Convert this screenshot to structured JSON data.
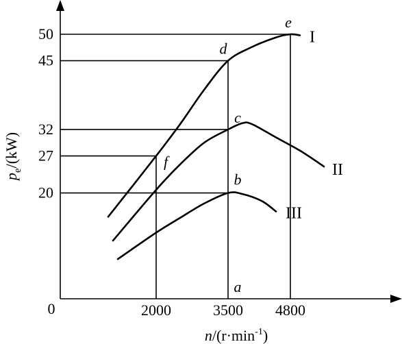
{
  "chart_data": {
    "type": "line",
    "xlabel_parts": {
      "var": "n",
      "unit": "/(r·min",
      "exp": "-1",
      "close": ")"
    },
    "ylabel_parts": {
      "var": "p",
      "sub": "e",
      "unit": "/(kW)"
    },
    "x_origin_label": "0",
    "xlim": [
      0,
      5600
    ],
    "ylim": [
      0,
      55
    ],
    "x_ticks": [
      2000,
      3500,
      4800
    ],
    "x_tick_labels": [
      "2000",
      "3500",
      "4800"
    ],
    "y_ticks": [
      20,
      27,
      32,
      45,
      50
    ],
    "y_tick_labels": [
      "20",
      "27",
      "32",
      "45",
      "50"
    ],
    "grid": false,
    "series": [
      {
        "name": "I",
        "x": [
          1000,
          2000,
          2500,
          3000,
          3500,
          4000,
          4500,
          4800,
          5000
        ],
        "y": [
          15.5,
          27,
          33,
          39.5,
          45,
          47.6,
          49.4,
          50,
          49.8
        ]
      },
      {
        "name": "II",
        "x": [
          1100,
          2000,
          2500,
          3000,
          3500,
          3800,
          4000,
          4500,
          5000,
          5500
        ],
        "y": [
          11,
          20.6,
          25.4,
          29.5,
          32,
          33.2,
          33.0,
          30.5,
          28,
          25
        ]
      },
      {
        "name": "III",
        "x": [
          1200,
          2000,
          2500,
          3000,
          3500,
          3800,
          4200,
          4500
        ],
        "y": [
          7.5,
          12.5,
          15.3,
          18,
          20,
          19.8,
          18.5,
          16.5
        ]
      }
    ],
    "points": [
      {
        "label": "e",
        "x": 4800,
        "y": 50
      },
      {
        "label": "d",
        "x": 3500,
        "y": 45
      },
      {
        "label": "c",
        "x": 3500,
        "y": 32
      },
      {
        "label": "f",
        "x": 2000,
        "y": 27
      },
      {
        "label": "b",
        "x": 3500,
        "y": 20
      },
      {
        "label": "a",
        "x": 3500,
        "y": 0
      }
    ]
  }
}
